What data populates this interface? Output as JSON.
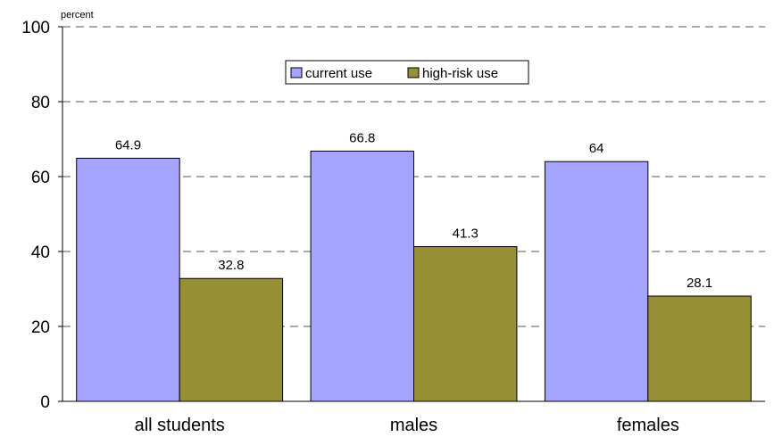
{
  "chart_data": {
    "type": "bar",
    "title": "",
    "xlabel": "",
    "ylabel": "percent",
    "ylim": [
      0,
      100
    ],
    "yticks": [
      0,
      20,
      40,
      60,
      80,
      100
    ],
    "grid": true,
    "legend_position": "top-center",
    "categories": [
      "all students",
      "males",
      "females"
    ],
    "series": [
      {
        "name": "current use",
        "color": "#a5a5ff",
        "values": [
          64.9,
          66.8,
          64
        ]
      },
      {
        "name": "high-risk use",
        "color": "#968f36",
        "values": [
          32.8,
          41.3,
          28.1
        ]
      }
    ]
  }
}
